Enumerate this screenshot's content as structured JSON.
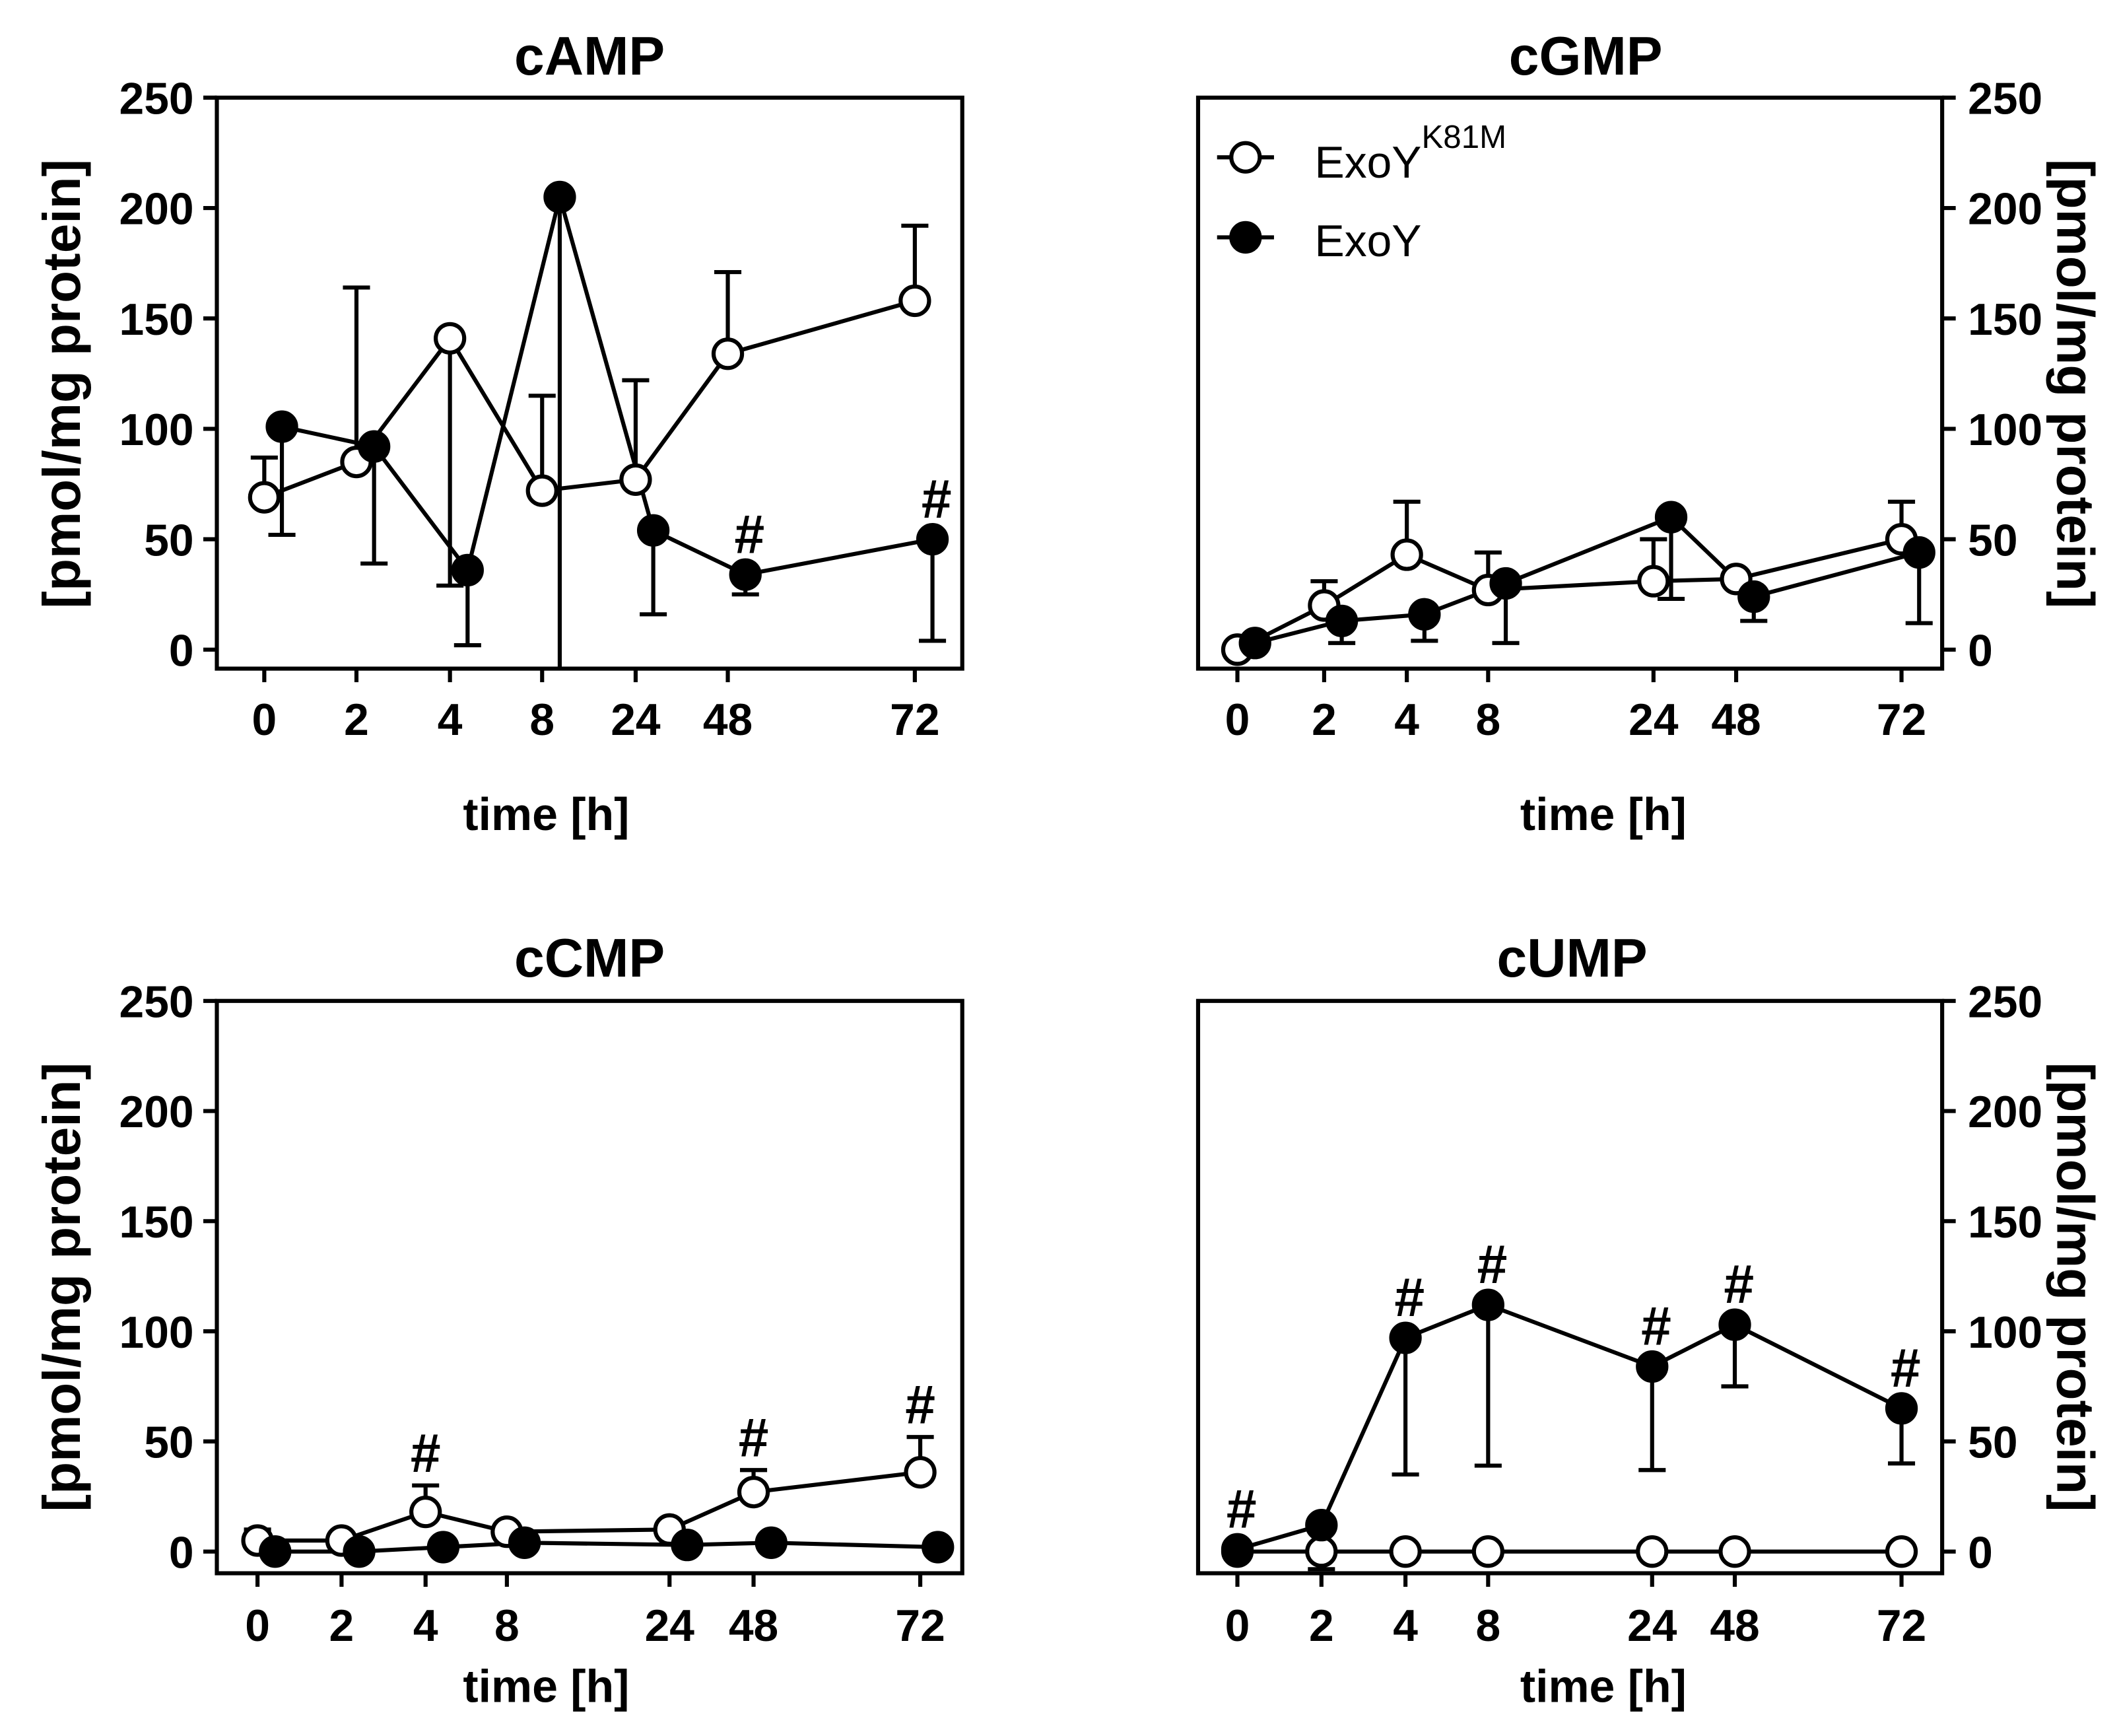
{
  "chart_data": [
    {
      "type": "line",
      "title": "cAMP",
      "xlabel": "time [h]",
      "ylabel": "[pmol/mg protein]",
      "y_axis_side": "left",
      "x": [
        "0",
        "2",
        "4",
        "8",
        "24",
        "48",
        "72"
      ],
      "ylim": [
        0,
        250
      ],
      "yticks": [
        0,
        50,
        100,
        150,
        200,
        250
      ],
      "grid": false,
      "sig_symbol": "#",
      "series": [
        {
          "name": "ExoY",
          "superscript": "K81M",
          "marker": "open-circle",
          "values": [
            69,
            85,
            141,
            72,
            77,
            134,
            158
          ],
          "error_bar_end": [
            87,
            164,
            29,
            115,
            122,
            171,
            192
          ]
        },
        {
          "name": "ExoY",
          "marker": "filled-circle",
          "values": [
            101,
            92,
            36,
            205,
            54,
            34,
            50
          ],
          "error_bar_end": [
            52,
            39,
            2,
            -9,
            16,
            25,
            4
          ],
          "significant": [
            false,
            false,
            false,
            false,
            false,
            true,
            true
          ]
        }
      ]
    },
    {
      "type": "line",
      "title": "cGMP",
      "xlabel": "time [h]",
      "ylabel": "[pmol/mg protein]",
      "y_axis_side": "right",
      "legend_placement": "top-left",
      "x": [
        "0",
        "2",
        "4",
        "8",
        "24",
        "48",
        "72"
      ],
      "ylim": [
        0,
        250
      ],
      "yticks": [
        0,
        50,
        100,
        150,
        200,
        250
      ],
      "grid": false,
      "series": [
        {
          "name": "ExoY",
          "superscript": "K81M",
          "marker": "open-circle",
          "values": [
            0,
            20,
            43,
            27,
            31,
            32,
            50
          ],
          "error_bar_end": [
            null,
            31,
            67,
            44,
            50,
            null,
            67
          ]
        },
        {
          "name": "ExoY",
          "marker": "filled-circle",
          "values": [
            3,
            13,
            16,
            30,
            60,
            24,
            44
          ],
          "error_bar_end": [
            null,
            3,
            4,
            3,
            23,
            13,
            12
          ]
        }
      ]
    },
    {
      "type": "line",
      "title": "cCMP",
      "xlabel": "time [h]",
      "ylabel": "[pmol/mg protein]",
      "y_axis_side": "left",
      "x": [
        "0",
        "2",
        "4",
        "8",
        "24",
        "48",
        "72"
      ],
      "ylim": [
        0,
        250
      ],
      "yticks": [
        0,
        50,
        100,
        150,
        200,
        250
      ],
      "grid": false,
      "sig_symbol": "#",
      "series": [
        {
          "name": "ExoY",
          "superscript": "K81M",
          "marker": "open-circle",
          "values": [
            5,
            5,
            18,
            9,
            10,
            27,
            36
          ],
          "error_bar_end": [
            10,
            null,
            30,
            null,
            null,
            37,
            52
          ],
          "significant": [
            false,
            false,
            true,
            false,
            false,
            true,
            true
          ]
        },
        {
          "name": "ExoY",
          "marker": "filled-circle",
          "values": [
            0,
            0,
            2,
            4,
            3,
            4,
            2
          ],
          "error_bar_end": [
            null,
            null,
            null,
            null,
            null,
            null,
            null
          ]
        }
      ]
    },
    {
      "type": "line",
      "title": "cUMP",
      "xlabel": "time [h]",
      "ylabel": "[pmol/mg protein]",
      "y_axis_side": "right",
      "x": [
        "0",
        "2",
        "4",
        "8",
        "24",
        "48",
        "72"
      ],
      "ylim": [
        0,
        250
      ],
      "yticks": [
        0,
        50,
        100,
        150,
        200,
        250
      ],
      "grid": false,
      "sig_symbol": "#",
      "series": [
        {
          "name": "ExoY",
          "superscript": "K81M",
          "marker": "open-circle",
          "values": [
            0,
            0,
            0,
            0,
            0,
            0,
            0
          ],
          "error_bar_end": [
            null,
            null,
            null,
            null,
            null,
            null,
            null
          ]
        },
        {
          "name": "ExoY",
          "marker": "filled-circle",
          "values": [
            1,
            12,
            97,
            112,
            84,
            103,
            65
          ],
          "error_bar_end": [
            null,
            -8,
            35,
            39,
            37,
            75,
            40
          ],
          "significant": [
            true,
            false,
            true,
            true,
            true,
            true,
            true
          ]
        }
      ]
    }
  ]
}
